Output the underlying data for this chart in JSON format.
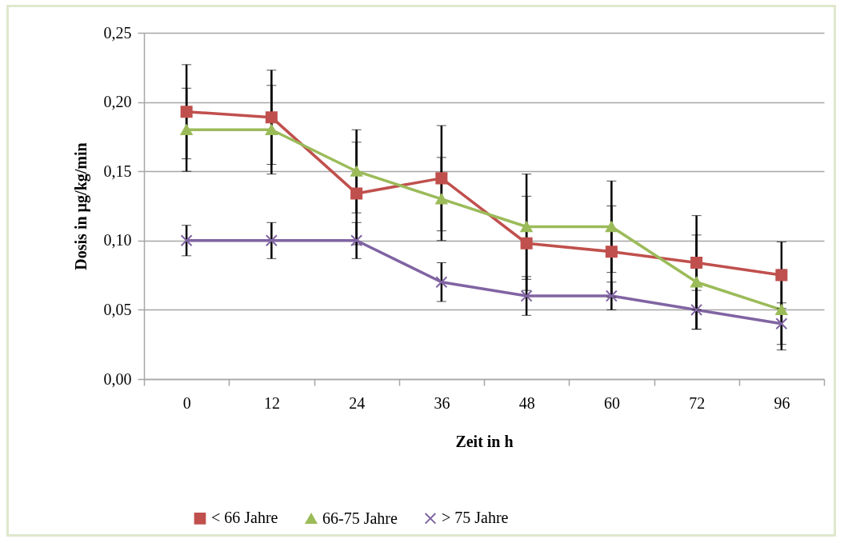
{
  "chart_data": {
    "type": "line",
    "xlabel": "Zeit in h",
    "ylabel": "Dosis in µg/kg/min",
    "categories": [
      "0",
      "12",
      "24",
      "36",
      "48",
      "60",
      "72",
      "96"
    ],
    "series": [
      {
        "name": "< 66 Jahre",
        "color": "#c0504d",
        "marker": "square",
        "values": [
          0.193,
          0.189,
          0.134,
          0.145,
          0.098,
          0.092,
          0.084,
          0.075
        ],
        "errors": [
          0.034,
          0.034,
          0.037,
          0.038,
          0.034,
          0.033,
          0.034,
          0.024
        ]
      },
      {
        "name": "66-75 Jahre",
        "color": "#9bbb59",
        "marker": "triangle",
        "values": [
          0.18,
          0.18,
          0.15,
          0.13,
          0.11,
          0.11,
          0.07,
          0.05
        ],
        "errors": [
          0.03,
          0.032,
          0.03,
          0.03,
          0.038,
          0.033,
          0.034,
          0.029
        ]
      },
      {
        "name": "> 75 Jahre",
        "color": "#8064a2",
        "marker": "cross",
        "values": [
          0.1,
          0.1,
          0.1,
          0.07,
          0.06,
          0.06,
          0.05,
          0.04
        ],
        "errors": [
          0.011,
          0.013,
          0.013,
          0.014,
          0.014,
          0.01,
          0.014,
          0.015
        ]
      }
    ],
    "ylim": [
      0,
      0.25
    ],
    "yticks": [
      {
        "value": 0,
        "label": "0,00"
      },
      {
        "value": 0.05,
        "label": "0,05"
      },
      {
        "value": 0.1,
        "label": "0,10"
      },
      {
        "value": 0.15,
        "label": "0,15"
      },
      {
        "value": 0.2,
        "label": "0,20"
      },
      {
        "value": 0.25,
        "label": "0,25"
      }
    ],
    "grid": "y",
    "legend": "bottom",
    "line_style": "solid"
  }
}
